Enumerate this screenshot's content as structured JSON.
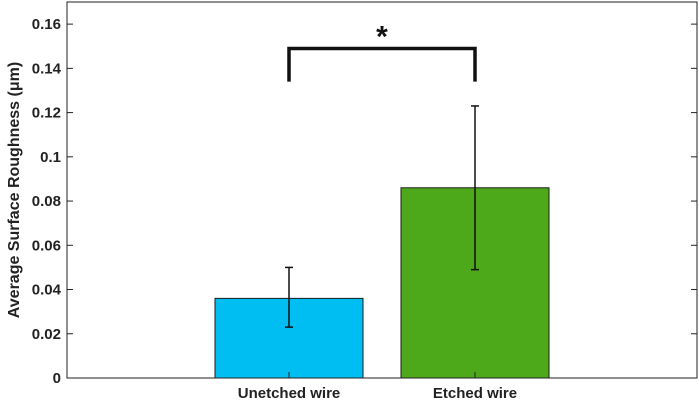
{
  "chart_data": {
    "type": "bar",
    "title": "",
    "xlabel": "",
    "ylabel": "Average Surface Roughness (μm)",
    "categories": [
      "Unetched wire",
      "Etched wire"
    ],
    "values": [
      0.036,
      0.086
    ],
    "error_low": [
      0.023,
      0.049
    ],
    "error_high": [
      0.05,
      0.123
    ],
    "bar_colors": [
      "#00bdf2",
      "#4ea91a"
    ],
    "ylim": [
      0,
      0.17
    ],
    "yticks": [
      0,
      0.02,
      0.04,
      0.06,
      0.08,
      0.1,
      0.12,
      0.14,
      0.16
    ],
    "ytick_labels": [
      "0",
      "0.02",
      "0.04",
      "0.06",
      "0.08",
      "0.1",
      "0.12",
      "0.14",
      "0.16"
    ],
    "grid": false,
    "significance": {
      "between": [
        0,
        1
      ],
      "y": 0.149,
      "label": "*"
    }
  }
}
